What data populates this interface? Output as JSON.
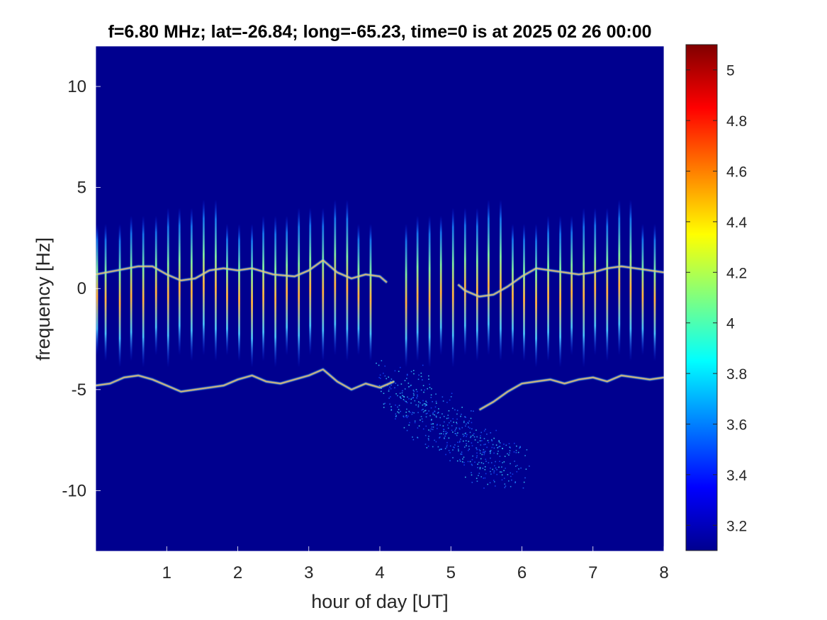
{
  "chart_data": {
    "type": "heatmap",
    "title": "f=6.80 MHz;  lat=-26.84; long=-65.23, time=0 is at 2025 02 26 00:00",
    "xlabel": "hour of day [UT]",
    "ylabel": "frequency [Hz]",
    "xlim": [
      0,
      8
    ],
    "ylim": [
      -13,
      12
    ],
    "x_ticks": [
      1,
      2,
      3,
      4,
      5,
      6,
      7,
      8
    ],
    "y_ticks": [
      10,
      5,
      0,
      -5,
      -10
    ],
    "colormap": "jet",
    "background_color": "#00008f",
    "colorbar": {
      "range": [
        3.1,
        5.1
      ],
      "ticks": [
        5,
        4.8,
        4.6,
        4.4,
        4.2,
        4,
        3.8,
        3.6,
        3.4,
        3.2
      ]
    },
    "traces": [
      {
        "feature": "upper Doppler trace",
        "x": [
          0,
          0.3,
          0.6,
          0.8,
          1.0,
          1.2,
          1.4,
          1.6,
          1.8,
          2.0,
          2.2,
          2.5,
          2.8,
          3.0,
          3.2,
          3.4,
          3.6,
          3.8,
          4.0,
          4.1
        ],
        "y": [
          0.7,
          0.9,
          1.1,
          1.1,
          0.7,
          0.4,
          0.5,
          0.9,
          1.0,
          0.9,
          1.0,
          0.7,
          0.6,
          0.9,
          1.4,
          0.8,
          0.5,
          0.7,
          0.6,
          0.3
        ]
      },
      {
        "feature": "upper Doppler trace (late)",
        "x": [
          5.1,
          5.2,
          5.4,
          5.6,
          5.8,
          6.0,
          6.2,
          6.4,
          6.6,
          6.8,
          7.0,
          7.2,
          7.4,
          7.6,
          7.8,
          8.0
        ],
        "y": [
          0.2,
          -0.1,
          -0.4,
          -0.3,
          0.1,
          0.6,
          1.0,
          0.9,
          0.8,
          0.7,
          0.8,
          1.0,
          1.1,
          1.0,
          0.9,
          0.8
        ]
      },
      {
        "feature": "lower Doppler trace",
        "x": [
          0,
          0.2,
          0.4,
          0.6,
          0.8,
          1.0,
          1.2,
          1.4,
          1.6,
          1.8,
          2.0,
          2.2,
          2.4,
          2.6,
          2.8,
          3.0,
          3.2,
          3.4,
          3.6,
          3.8,
          4.0,
          4.2
        ],
        "y": [
          -4.8,
          -4.7,
          -4.4,
          -4.3,
          -4.5,
          -4.8,
          -5.1,
          -5.0,
          -4.9,
          -4.8,
          -4.5,
          -4.3,
          -4.6,
          -4.7,
          -4.5,
          -4.3,
          -4.0,
          -4.6,
          -5.0,
          -4.7,
          -4.9,
          -4.6
        ]
      },
      {
        "feature": "lower Doppler trace (late)",
        "x": [
          5.4,
          5.6,
          5.8,
          6.0,
          6.2,
          6.4,
          6.6,
          6.8,
          7.0,
          7.2,
          7.4,
          7.6,
          7.8,
          8.0
        ],
        "y": [
          -6.0,
          -5.6,
          -5.1,
          -4.7,
          -4.6,
          -4.5,
          -4.7,
          -4.5,
          -4.4,
          -4.6,
          -4.3,
          -4.4,
          -4.5,
          -4.4
        ]
      },
      {
        "feature": "diffuse spread scatter",
        "x": [
          4.2,
          4.5,
          4.8,
          5.0,
          5.3,
          5.6,
          5.8
        ],
        "y": [
          -4.5,
          -5.5,
          -6.5,
          -7.0,
          -7.8,
          -8.5,
          -8.8
        ]
      }
    ],
    "vertical_streaks": {
      "x": [
        0.02,
        0.14,
        0.34,
        0.5,
        0.67,
        0.85,
        1.02,
        1.18,
        1.35,
        1.52,
        1.69,
        1.85,
        2.02,
        2.2,
        2.36,
        2.53,
        2.69,
        2.86,
        3.02,
        3.2,
        3.37,
        3.54,
        3.7,
        3.87,
        4.37,
        4.53,
        4.7,
        4.86,
        5.03,
        5.2,
        5.37,
        5.53,
        5.7,
        5.87,
        6.03,
        6.2,
        6.37,
        6.54,
        6.7,
        6.87,
        7.03,
        7.2,
        7.37,
        7.53,
        7.7,
        7.87
      ],
      "y_range": [
        -3,
        3
      ]
    }
  }
}
